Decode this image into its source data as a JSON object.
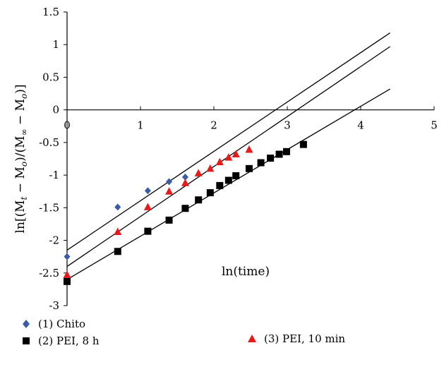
{
  "chart_data": {
    "type": "scatter",
    "xlabel": "ln(time)",
    "ylabel": "ln[(M_t − M_o)/(M_∞ − M_o)]",
    "xlim": [
      0,
      5
    ],
    "ylim": [
      -3,
      1.5
    ],
    "x_ticks": [
      "0",
      "1",
      "2",
      "3",
      "4",
      "5"
    ],
    "y_ticks": [
      "1.5",
      "1",
      "0.5",
      "0",
      "-0.5",
      "-1",
      "-1.5",
      "-2",
      "-2.5",
      "-3"
    ],
    "grid": false,
    "legend_position": "bottom",
    "series": [
      {
        "name": "(1) Chito",
        "marker": "diamond",
        "color": "#3a5ca8",
        "x": [
          0,
          0.69,
          1.1,
          1.39,
          1.61
        ],
        "y": [
          -2.25,
          -1.49,
          -1.24,
          -1.1,
          -1.03
        ],
        "fit": {
          "x": [
            0,
            4.4
          ],
          "y": [
            -2.15,
            1.18
          ]
        }
      },
      {
        "name": "(2) PEI, 8 h",
        "marker": "square",
        "color": "#000000",
        "x": [
          0,
          0.69,
          1.1,
          1.39,
          1.61,
          1.79,
          1.95,
          2.08,
          2.2,
          2.3,
          2.48,
          2.64,
          2.77,
          2.89,
          2.99,
          3.22
        ],
        "y": [
          -2.63,
          -2.17,
          -1.86,
          -1.69,
          -1.51,
          -1.38,
          -1.27,
          -1.16,
          -1.08,
          -1.01,
          -0.9,
          -0.81,
          -0.74,
          -0.68,
          -0.64,
          -0.53
        ],
        "fit": {
          "x": [
            0,
            4.4
          ],
          "y": [
            -2.6,
            0.32
          ]
        }
      },
      {
        "name": "(3) PEI, 10 min",
        "marker": "triangle",
        "color": "#e8191b",
        "x": [
          0,
          0.69,
          1.1,
          1.39,
          1.61,
          1.79,
          1.95,
          2.08,
          2.2,
          2.3,
          2.48
        ],
        "y": [
          -2.53,
          -1.87,
          -1.49,
          -1.25,
          -1.12,
          -0.97,
          -0.9,
          -0.8,
          -0.73,
          -0.68,
          -0.61
        ],
        "fit": {
          "x": [
            0,
            4.4
          ],
          "y": [
            -2.4,
            0.97
          ]
        }
      }
    ]
  }
}
